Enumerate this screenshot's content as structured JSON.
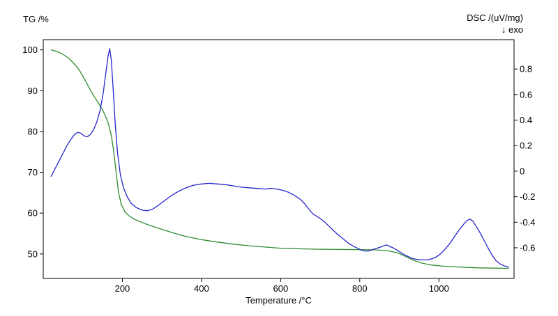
{
  "chart_data": {
    "type": "line",
    "title": "",
    "grid": false,
    "legend": "none",
    "x_axis": {
      "label": "Temperature /°C",
      "ticks": [
        200,
        400,
        600,
        800,
        1000
      ],
      "range": [
        0,
        1190
      ]
    },
    "left_axis": {
      "label": "TG /%",
      "ticks": [
        50,
        60,
        70,
        80,
        90,
        100
      ],
      "range": [
        44.0,
        102.5
      ]
    },
    "right_axis": {
      "label": "DSC /(uV/mg)",
      "sublabel": "↓ exo",
      "ticks": [
        -0.6,
        -0.4,
        -0.2,
        0,
        0.2,
        0.4,
        0.6,
        0.8
      ],
      "range": [
        -0.84,
        1.03
      ]
    },
    "series": [
      {
        "name": "TG",
        "axis": "left",
        "color": "#2e8b32",
        "points": [
          [
            20,
            100
          ],
          [
            35,
            99.6
          ],
          [
            50,
            98.9
          ],
          [
            65,
            97.9
          ],
          [
            80,
            96.4
          ],
          [
            90,
            95.2
          ],
          [
            100,
            93.6
          ],
          [
            110,
            91.8
          ],
          [
            120,
            90.0
          ],
          [
            130,
            88.4
          ],
          [
            140,
            86.9
          ],
          [
            150,
            85.3
          ],
          [
            158,
            83.6
          ],
          [
            165,
            81.8
          ],
          [
            172,
            79.0
          ],
          [
            178,
            75.2
          ],
          [
            184,
            70.2
          ],
          [
            190,
            65.2
          ],
          [
            197,
            62.2
          ],
          [
            206,
            60.4
          ],
          [
            216,
            59.4
          ],
          [
            230,
            58.5
          ],
          [
            250,
            57.7
          ],
          [
            275,
            56.8
          ],
          [
            300,
            56.0
          ],
          [
            330,
            55.1
          ],
          [
            360,
            54.3
          ],
          [
            400,
            53.5
          ],
          [
            440,
            52.9
          ],
          [
            480,
            52.4
          ],
          [
            520,
            52.0
          ],
          [
            560,
            51.7
          ],
          [
            600,
            51.4
          ],
          [
            650,
            51.25
          ],
          [
            700,
            51.15
          ],
          [
            750,
            51.1
          ],
          [
            800,
            51.05
          ],
          [
            840,
            51.0
          ],
          [
            870,
            50.8
          ],
          [
            895,
            50.3
          ],
          [
            915,
            49.4
          ],
          [
            935,
            48.5
          ],
          [
            955,
            47.8
          ],
          [
            980,
            47.3
          ],
          [
            1010,
            47.0
          ],
          [
            1050,
            46.8
          ],
          [
            1100,
            46.6
          ],
          [
            1150,
            46.5
          ],
          [
            1176,
            46.45
          ]
        ]
      },
      {
        "name": "DSC",
        "axis": "right",
        "color": "#2424cc",
        "points": [
          [
            20,
            -0.04
          ],
          [
            30,
            0.02
          ],
          [
            40,
            0.08
          ],
          [
            50,
            0.14
          ],
          [
            60,
            0.2
          ],
          [
            70,
            0.25
          ],
          [
            80,
            0.29
          ],
          [
            88,
            0.305
          ],
          [
            96,
            0.295
          ],
          [
            104,
            0.275
          ],
          [
            112,
            0.27
          ],
          [
            120,
            0.29
          ],
          [
            128,
            0.33
          ],
          [
            136,
            0.39
          ],
          [
            144,
            0.48
          ],
          [
            152,
            0.62
          ],
          [
            159,
            0.79
          ],
          [
            164,
            0.9
          ],
          [
            168,
            0.96
          ],
          [
            172,
            0.87
          ],
          [
            177,
            0.63
          ],
          [
            182,
            0.37
          ],
          [
            188,
            0.14
          ],
          [
            195,
            -0.03
          ],
          [
            203,
            -0.13
          ],
          [
            212,
            -0.2
          ],
          [
            222,
            -0.25
          ],
          [
            235,
            -0.285
          ],
          [
            250,
            -0.305
          ],
          [
            262,
            -0.31
          ],
          [
            275,
            -0.3
          ],
          [
            290,
            -0.27
          ],
          [
            305,
            -0.235
          ],
          [
            320,
            -0.2
          ],
          [
            335,
            -0.17
          ],
          [
            350,
            -0.145
          ],
          [
            365,
            -0.125
          ],
          [
            380,
            -0.11
          ],
          [
            400,
            -0.1
          ],
          [
            420,
            -0.095
          ],
          [
            440,
            -0.1
          ],
          [
            460,
            -0.105
          ],
          [
            480,
            -0.115
          ],
          [
            500,
            -0.125
          ],
          [
            520,
            -0.13
          ],
          [
            540,
            -0.135
          ],
          [
            560,
            -0.14
          ],
          [
            575,
            -0.135
          ],
          [
            590,
            -0.14
          ],
          [
            605,
            -0.15
          ],
          [
            620,
            -0.165
          ],
          [
            635,
            -0.19
          ],
          [
            650,
            -0.22
          ],
          [
            662,
            -0.26
          ],
          [
            672,
            -0.3
          ],
          [
            682,
            -0.335
          ],
          [
            692,
            -0.355
          ],
          [
            702,
            -0.375
          ],
          [
            712,
            -0.4
          ],
          [
            722,
            -0.43
          ],
          [
            732,
            -0.46
          ],
          [
            742,
            -0.49
          ],
          [
            752,
            -0.515
          ],
          [
            762,
            -0.54
          ],
          [
            772,
            -0.565
          ],
          [
            782,
            -0.585
          ],
          [
            792,
            -0.6
          ],
          [
            802,
            -0.615
          ],
          [
            812,
            -0.625
          ],
          [
            822,
            -0.625
          ],
          [
            832,
            -0.615
          ],
          [
            842,
            -0.605
          ],
          [
            852,
            -0.595
          ],
          [
            860,
            -0.585
          ],
          [
            868,
            -0.578
          ],
          [
            876,
            -0.59
          ],
          [
            884,
            -0.6
          ],
          [
            892,
            -0.615
          ],
          [
            900,
            -0.63
          ],
          [
            910,
            -0.65
          ],
          [
            920,
            -0.665
          ],
          [
            930,
            -0.68
          ],
          [
            942,
            -0.69
          ],
          [
            955,
            -0.695
          ],
          [
            968,
            -0.695
          ],
          [
            980,
            -0.688
          ],
          [
            992,
            -0.675
          ],
          [
            1004,
            -0.648
          ],
          [
            1016,
            -0.61
          ],
          [
            1028,
            -0.565
          ],
          [
            1040,
            -0.51
          ],
          [
            1052,
            -0.458
          ],
          [
            1062,
            -0.418
          ],
          [
            1070,
            -0.39
          ],
          [
            1078,
            -0.375
          ],
          [
            1086,
            -0.392
          ],
          [
            1094,
            -0.43
          ],
          [
            1104,
            -0.482
          ],
          [
            1114,
            -0.54
          ],
          [
            1124,
            -0.6
          ],
          [
            1134,
            -0.655
          ],
          [
            1144,
            -0.7
          ],
          [
            1154,
            -0.725
          ],
          [
            1164,
            -0.74
          ],
          [
            1176,
            -0.752
          ]
        ]
      }
    ]
  }
}
